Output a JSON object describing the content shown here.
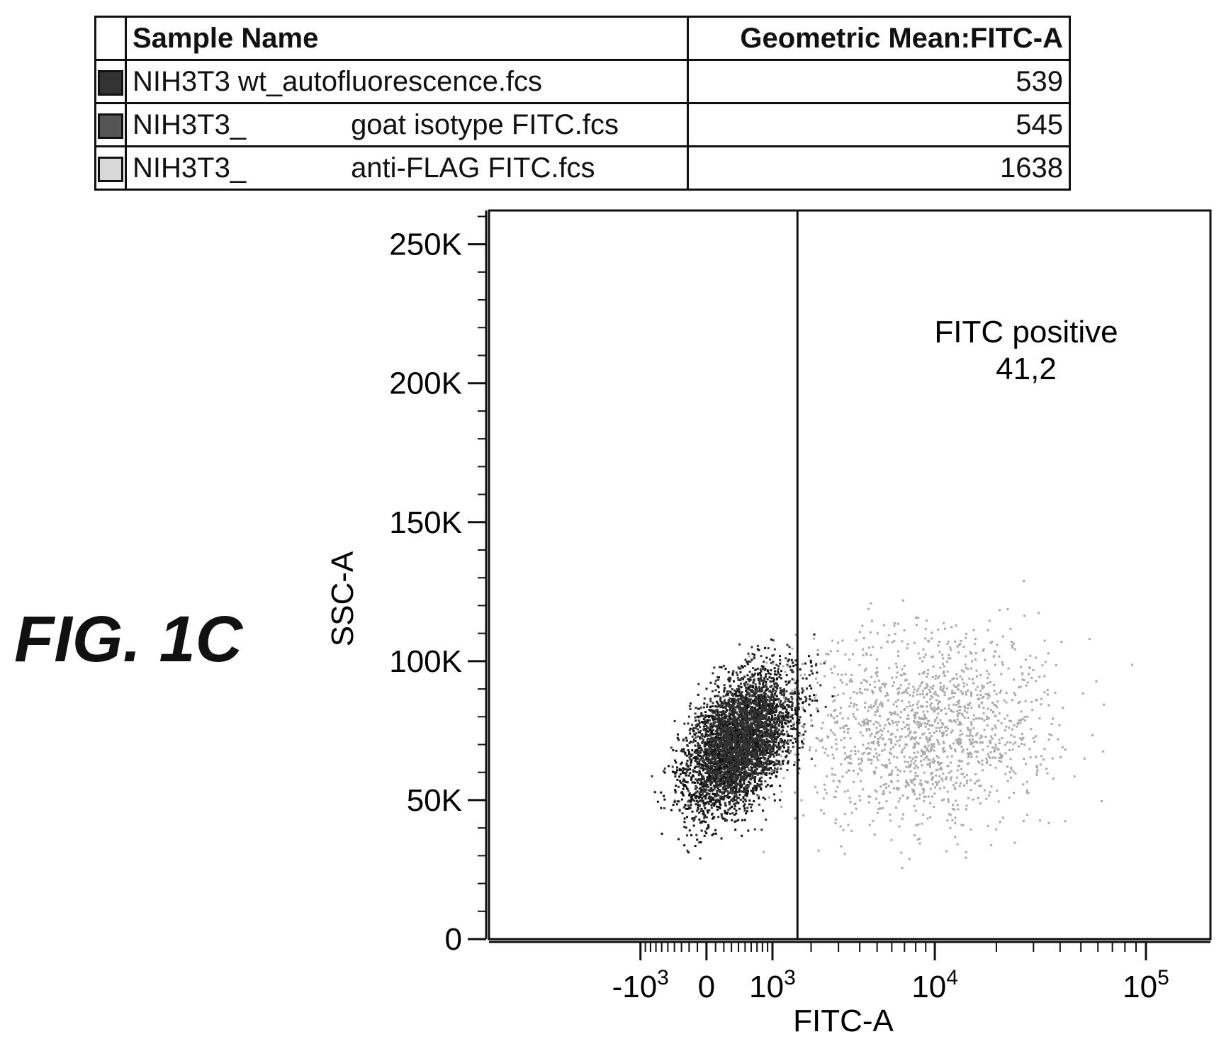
{
  "figure_label": "FIG. 1C",
  "legend_table": {
    "headers": {
      "sample": "Sample Name",
      "mean": "Geometric Mean:FITC-A"
    },
    "rows": [
      {
        "prefix": "NIH3T3 wt_autofluorescence.fcs",
        "suffix": "",
        "mean": "539",
        "color": "#333333"
      },
      {
        "prefix": "NIH3T3_",
        "suffix": "goat isotype FITC.fcs",
        "mean": "545",
        "color": "#555555"
      },
      {
        "prefix": "NIH3T3_",
        "suffix": "anti-FLAG FITC.fcs",
        "mean": "1638",
        "color": "#d8d8d8"
      }
    ]
  },
  "chart_data": {
    "type": "scatter",
    "title": "",
    "xlabel": "FITC-A",
    "ylabel": "SSC-A",
    "x_scale": "biexponential",
    "y_scale": "linear",
    "ylim": [
      0,
      262144
    ],
    "y_ticks": [
      {
        "value": 0,
        "label": "0"
      },
      {
        "value": 50000,
        "label": "50K"
      },
      {
        "value": 100000,
        "label": "100K"
      },
      {
        "value": 150000,
        "label": "150K"
      },
      {
        "value": 200000,
        "label": "200K"
      },
      {
        "value": 250000,
        "label": "250K"
      }
    ],
    "x_ticks": [
      {
        "value": -1000,
        "base": "-10",
        "exp": "3"
      },
      {
        "value": 0,
        "base": "0",
        "exp": ""
      },
      {
        "value": 1000,
        "base": "10",
        "exp": "3"
      },
      {
        "value": 10000,
        "base": "10",
        "exp": "4"
      },
      {
        "value": 100000,
        "base": "10",
        "exp": "5"
      }
    ],
    "gate": {
      "name": "FITC positive",
      "value": "41,2",
      "threshold": 1600
    },
    "series": [
      {
        "color": "#111111",
        "center": [
          400,
          70000
        ],
        "points": 2600
      },
      {
        "color": "#333333",
        "center": [
          420,
          72000
        ],
        "points": 1800
      },
      {
        "color": "#aaaaaa",
        "center": [
          9000,
          75000
        ],
        "points": 1500
      }
    ]
  }
}
